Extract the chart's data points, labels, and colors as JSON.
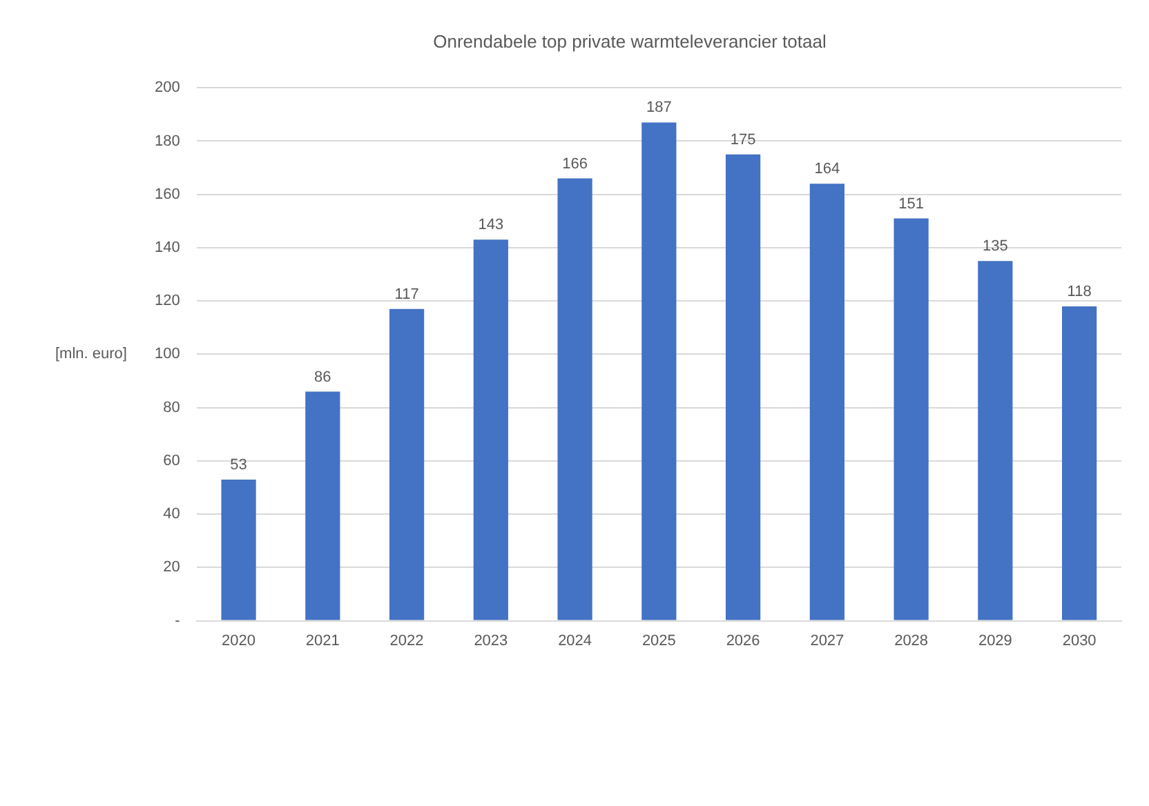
{
  "chart_data": {
    "type": "bar",
    "title": "Onrendabele top private warmteleverancier totaal",
    "ylabel": "[mln. euro]",
    "categories": [
      "2020",
      "2021",
      "2022",
      "2023",
      "2024",
      "2025",
      "2026",
      "2027",
      "2028",
      "2029",
      "2030"
    ],
    "values": [
      53,
      86,
      117,
      143,
      166,
      187,
      175,
      164,
      151,
      135,
      118
    ],
    "color": "#4472c4",
    "ylim": [
      0,
      200
    ],
    "yticks": [
      {
        "value": 0,
        "label": "-"
      },
      20,
      40,
      60,
      80,
      100,
      120,
      140,
      160,
      180,
      200
    ],
    "grid": "y",
    "data_labels": true
  }
}
